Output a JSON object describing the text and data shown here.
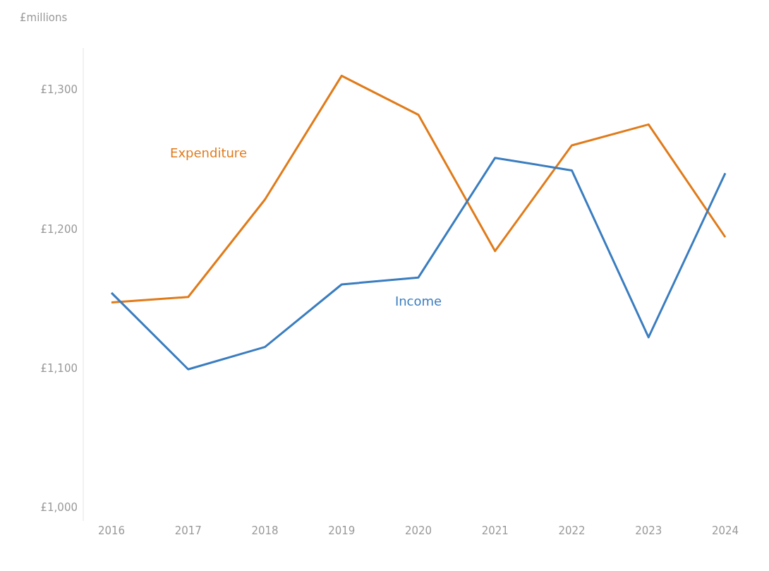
{
  "chart_data": {
    "type": "line",
    "ylabel": "£millions",
    "categories": [
      "2016",
      "2017",
      "2018",
      "2019",
      "2020",
      "2021",
      "2022",
      "2023",
      "2024"
    ],
    "series": [
      {
        "name": "Expenditure",
        "color": "#e07b1a",
        "values": [
          1147,
          1151,
          1221,
          1310,
          1282,
          1184,
          1260,
          1275,
          1194
        ]
      },
      {
        "name": "Income",
        "color": "#3a7dc0",
        "values": [
          1154,
          1099,
          1115,
          1160,
          1165,
          1251,
          1242,
          1122,
          1240
        ]
      }
    ],
    "ylim": [
      990,
      1330
    ],
    "yticks": [
      {
        "value": 1000,
        "label": "£1,000"
      },
      {
        "value": 1100,
        "label": "£1,100"
      },
      {
        "value": 1200,
        "label": "£1,200"
      },
      {
        "value": 1300,
        "label": "£1,300"
      }
    ],
    "grid": false,
    "legend": false,
    "marker": "none",
    "line_style": "solid"
  }
}
